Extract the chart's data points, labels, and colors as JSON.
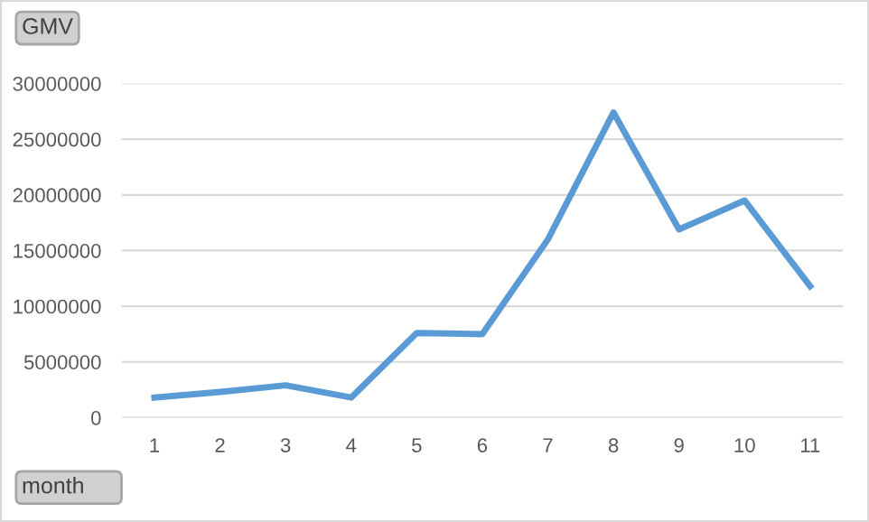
{
  "chart_data": {
    "type": "line",
    "ylabel": "GMV",
    "xlabel": "month",
    "categories": [
      "1",
      "2",
      "3",
      "4",
      "5",
      "6",
      "7",
      "8",
      "9",
      "10",
      "11"
    ],
    "series": [
      {
        "color": "#5b9bd5",
        "values": [
          1800000,
          2300000,
          2900000,
          1800000,
          7600000,
          7500000,
          16000000,
          27400000,
          16900000,
          19500000,
          11800000
        ]
      }
    ],
    "ylim": [
      0,
      30000000
    ],
    "yticks": [
      0,
      5000000,
      10000000,
      15000000,
      20000000,
      25000000,
      30000000
    ],
    "grid": "y",
    "marker": "none",
    "line_style": "solid"
  }
}
